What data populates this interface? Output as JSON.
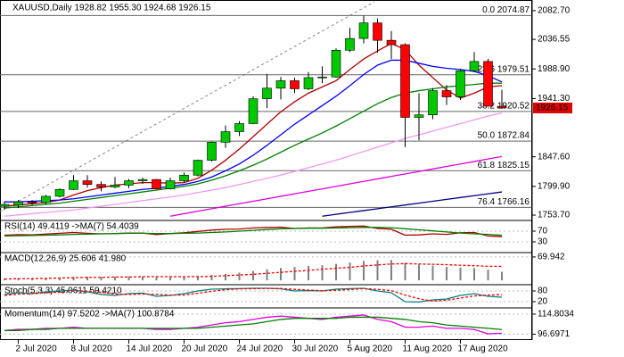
{
  "chart_data": {
    "type": "candlestick",
    "title": "XAUUSD,Daily  1928.82 1955.30 1924.68 1926.15",
    "categories": [
      null,
      "2 Jul 2020",
      null,
      null,
      null,
      "8 Jul 2020",
      null,
      null,
      null,
      "14 Jul 2020",
      null,
      null,
      null,
      "20 Jul 2020",
      null,
      null,
      null,
      "24 Jul 2020",
      null,
      null,
      null,
      "30 Jul 2020",
      null,
      null,
      null,
      "5 Aug 2020",
      null,
      null,
      null,
      "11 Aug 2020",
      null,
      null,
      null,
      "17 Aug 2020",
      null,
      null,
      null
    ],
    "open": [
      1768,
      1770,
      1775,
      1774,
      1784,
      1795,
      1809,
      1803,
      1799,
      1802,
      1809,
      1811,
      1796,
      1809,
      1818,
      1842,
      1871,
      1888,
      1901,
      1941,
      1958,
      1970,
      1957,
      1975,
      1976,
      2019,
      2038,
      2063,
      2035,
      2028,
      1911,
      1915,
      1954,
      1944,
      1986,
      2001,
      1928.82
    ],
    "high": [
      1776,
      1778,
      1778,
      1786,
      1797,
      1818,
      1818,
      1808,
      1815,
      1812,
      1814,
      1812,
      1814,
      1822,
      1843,
      1872,
      1898,
      1905,
      1945,
      1981,
      1976,
      1975,
      1984,
      1993,
      2022,
      2055,
      2075,
      2070,
      2050,
      2030,
      1950,
      1958,
      1963,
      1989,
      2016,
      2005,
      1955.3
    ],
    "low": [
      1762,
      1765,
      1770,
      1771,
      1782,
      1794,
      1798,
      1792,
      1797,
      1797,
      1804,
      1795,
      1795,
      1806,
      1816,
      1840,
      1862,
      1881,
      1900,
      1926,
      1940,
      1950,
      1955,
      1966,
      1975,
      2016,
      2030,
      2015,
      2005,
      1863,
      1874,
      1908,
      1931,
      1939,
      1984,
      1929,
      1924.68
    ],
    "close": [
      1771,
      1775,
      1774,
      1784,
      1795,
      1809,
      1803,
      1799,
      1802,
      1809,
      1811,
      1796,
      1809,
      1818,
      1842,
      1871,
      1888,
      1901,
      1941,
      1958,
      1970,
      1957,
      1975,
      1976,
      2019,
      2038,
      2063,
      2035,
      2028,
      1911,
      1915,
      1954,
      1944,
      1986,
      2001,
      1929,
      1926.15
    ],
    "up_color": "#00c800",
    "down_color": "#ff0000",
    "ylim": [
      1748,
      2097
    ],
    "yticks": [
      {
        "value": 2082.7,
        "label": "2082.70"
      },
      2036.55,
      {
        "value": 1988.9,
        "label": "1988.90"
      },
      {
        "value": 1941.3,
        "label": "1941.30"
      },
      {
        "value": 1847.6,
        "label": "1847.60"
      },
      {
        "value": 1799.9,
        "label": "1799.90"
      },
      {
        "value": 1753.7,
        "label": "1753.70"
      }
    ],
    "current_price": 1926.15,
    "fib_levels": [
      {
        "value": 2074.87,
        "label": "0.0 2074.87"
      },
      {
        "value": 1979.51,
        "label": "23.6 1979.51"
      },
      {
        "value": 1920.52,
        "label": "38.2 1920.52"
      },
      {
        "value": 1872.84,
        "label": "50.0 1872.84"
      },
      {
        "value": 1825.15,
        "label": "61.8 1825.15"
      },
      {
        "value": 1766.16,
        "label": "76.4 1766.16"
      }
    ],
    "series": [
      {
        "color": "#b00000",
        "values": [
          1768,
          1770,
          1772,
          1774,
          1778,
          1786,
          1793,
          1798,
          1802,
          1804,
          1806,
          1806,
          1805,
          1806,
          1813,
          1826,
          1842,
          1860,
          1880,
          1900,
          1920,
          1936,
          1950,
          1960,
          1970,
          1988,
          2005,
          2018,
          2030,
          2020,
          1995,
          1975,
          1955,
          1942,
          1950,
          1960,
          1962
        ]
      },
      {
        "color": "#0000ff",
        "values": [
          1775,
          1775,
          1776,
          1777,
          1778,
          1780,
          1783,
          1786,
          1789,
          1792,
          1795,
          1797,
          1800,
          1803,
          1808,
          1815,
          1825,
          1836,
          1850,
          1866,
          1883,
          1900,
          1915,
          1930,
          1945,
          1962,
          1980,
          1995,
          2003,
          2003,
          1998,
          1993,
          1990,
          1988,
          1985,
          1978,
          1968
        ]
      },
      {
        "color": "#008000",
        "values": [
          1765,
          1767,
          1769,
          1771,
          1773,
          1776,
          1779,
          1782,
          1785,
          1788,
          1791,
          1794,
          1797,
          1800,
          1804,
          1810,
          1817,
          1825,
          1834,
          1844,
          1855,
          1866,
          1876,
          1886,
          1897,
          1909,
          1921,
          1933,
          1943,
          1950,
          1954,
          1957,
          1960,
          1962,
          1964,
          1966,
          1966
        ]
      },
      {
        "color": "#f09af0",
        "values": [
          1752,
          1754,
          1756,
          1758,
          1760,
          1762,
          1765,
          1768,
          1771,
          1774,
          1777,
          1780,
          1783,
          1786,
          1790,
          1794,
          1798,
          1803,
          1808,
          1813,
          1818,
          1824,
          1830,
          1836,
          1842,
          1849,
          1856,
          1863,
          1870,
          1877,
          1883,
          1889,
          1895,
          1901,
          1907,
          1913,
          1918
        ]
      },
      {
        "color": "#e000e0",
        "values": [
          null,
          null,
          null,
          null,
          null,
          null,
          null,
          null,
          null,
          null,
          null,
          null,
          1752,
          1756,
          1760,
          1764,
          1768,
          1772,
          1776,
          1780,
          1784,
          1788,
          1792,
          1796,
          1800,
          1804,
          1808,
          1812,
          1816,
          1820,
          1824,
          1828,
          1832,
          1836,
          1840,
          1844,
          1848
        ]
      },
      {
        "color": "#000080",
        "values": [
          null,
          null,
          null,
          null,
          null,
          null,
          null,
          null,
          null,
          null,
          null,
          null,
          null,
          null,
          null,
          null,
          null,
          null,
          null,
          null,
          null,
          null,
          null,
          1752,
          1755,
          1758,
          1761,
          1764,
          1767,
          1770,
          1773,
          1776,
          1779,
          1782,
          1785,
          1788,
          1791
        ]
      }
    ],
    "panes": [
      {
        "title": "RSI(14) 49.4119 ->MA(7) 54.4039",
        "ylim": [
          0,
          100
        ],
        "yticks": [
          70,
          30
        ],
        "series": [
          {
            "type": "line",
            "color": "#b00000",
            "values": [
              55,
              57,
              56,
              59,
              62,
              65,
              62,
              60,
              61,
              63,
              63,
              57,
              61,
              64,
              69,
              74,
              77,
              78,
              82,
              84,
              85,
              80,
              82,
              82,
              86,
              88,
              89,
              80,
              77,
              55,
              56,
              60,
              58,
              64,
              65,
              52,
              49.4119
            ]
          },
          {
            "type": "line",
            "color": "#008000",
            "values": [
              52,
              53,
              54,
              55,
              56,
              58,
              59,
              60,
              61,
              62,
              62,
              61,
              61,
              62,
              63,
              65,
              67,
              70,
              73,
              76,
              79,
              80,
              81,
              81,
              82,
              83,
              84,
              84,
              83,
              79,
              75,
              71,
              67,
              63,
              60,
              58,
              54.4039
            ]
          }
        ]
      },
      {
        "title": "MACD(12,26,9) 25.606 41.980",
        "ylim": [
          -5,
          75
        ],
        "yticks": [
          {
            "value": 69.942,
            "label": "69.942"
          }
        ],
        "series": [
          {
            "type": "histogram",
            "color": "#808080",
            "values": [
              5,
              6,
              6,
              7,
              8,
              10,
              11,
              11,
              11,
              12,
              12,
              11,
              11,
              11,
              13,
              16,
              19,
              23,
              28,
              33,
              37,
              40,
              43,
              45,
              49,
              53,
              58,
              60,
              61,
              53,
              47,
              44,
              40,
              38,
              37,
              32,
              25.606
            ]
          },
          {
            "type": "dashed",
            "color": "#ff0000",
            "values": [
              4,
              5,
              5,
              6,
              7,
              8,
              9,
              9,
              10,
              10,
              11,
              11,
              11,
              11,
              11,
              12,
              14,
              16,
              18,
              21,
              24,
              27,
              30,
              33,
              36,
              39,
              43,
              46,
              49,
              50,
              49,
              48,
              47,
              45,
              44,
              42,
              41.98
            ]
          }
        ]
      },
      {
        "title": "Stoch(5,3,3) 45.0611 59.4210",
        "ylim": [
          0,
          100
        ],
        "yticks": [
          80,
          20
        ],
        "series": [
          {
            "type": "line",
            "color": "#008080",
            "values": [
              60,
              70,
              65,
              75,
              80,
              85,
              75,
              60,
              55,
              65,
              68,
              50,
              55,
              65,
              80,
              90,
              92,
              93,
              95,
              95,
              92,
              80,
              82,
              80,
              90,
              93,
              95,
              80,
              70,
              20,
              18,
              30,
              35,
              55,
              65,
              50,
              45.0611
            ]
          },
          {
            "type": "dashed",
            "color": "#ff0000",
            "values": [
              55,
              62,
              65,
              70,
              73,
              80,
              80,
              73,
              63,
              60,
              63,
              61,
              57,
              57,
              67,
              78,
              87,
              92,
              93,
              94,
              94,
              89,
              85,
              81,
              84,
              88,
              93,
              89,
              82,
              57,
              36,
              23,
              28,
              40,
              52,
              57,
              59.421
            ]
          }
        ]
      },
      {
        "title": "Momentum(14) 97.5202 ->MA(7) 100.8784",
        "ylim": [
          93,
          118
        ],
        "yticks": [
          {
            "value": 114.8034,
            "label": "114.8034"
          },
          {
            "value": 96.6971,
            "label": "96.6971"
          }
        ],
        "series": [
          {
            "type": "line",
            "color": "#e000e0",
            "values": [
              100,
              101,
              101,
              102,
              102,
              103,
              102,
              102,
              102,
              102,
              102,
              101,
              101,
              102,
              103,
              105,
              107,
              108,
              110,
              112,
              113,
              112,
              111,
              110,
              112,
              113,
              114,
              110,
              108,
              103,
              103,
              104,
              102,
              102,
              101,
              97,
              97.5202
            ]
          },
          {
            "type": "line",
            "color": "#008000",
            "values": [
              100,
              100,
              101,
              101,
              102,
              102,
              102,
              102,
              102,
              102,
              102,
              102,
              102,
              102,
              102,
              103,
              104,
              105,
              106,
              108,
              110,
              111,
              111,
              111,
              111,
              112,
              112,
              112,
              111,
              110,
              108,
              107,
              105,
              104,
              103,
              102,
              100.8784
            ]
          }
        ]
      }
    ]
  }
}
